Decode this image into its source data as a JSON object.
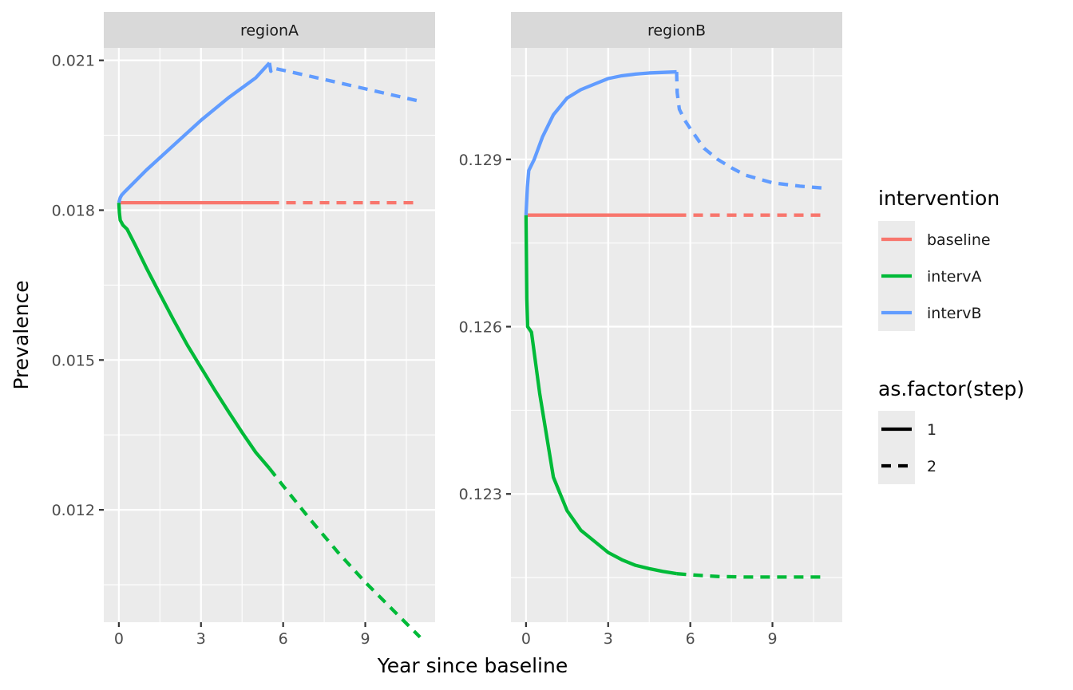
{
  "chart_data": {
    "type": "line",
    "xlabel": "Year since baseline",
    "ylabel": "Prevalence",
    "x_ticks": [
      0,
      3,
      6,
      9
    ],
    "panels": [
      {
        "label": "regionA",
        "xlim": [
          -0.55,
          11.55
        ],
        "ylim": [
          0.00975,
          0.02125
        ],
        "y_ticks": [
          0.012,
          0.015,
          0.018,
          0.021
        ],
        "y_tick_labels": [
          "0.012",
          "0.015",
          "0.018",
          "0.021"
        ],
        "series": [
          {
            "intervention": "baseline",
            "step1": [
              [
                0,
                0.01815
              ],
              [
                5.5,
                0.01815
              ]
            ],
            "step2": [
              [
                5.5,
                0.01815
              ],
              [
                11,
                0.01815
              ]
            ]
          },
          {
            "intervention": "intervA",
            "step1": [
              [
                0,
                0.01815
              ],
              [
                0.02,
                0.01795
              ],
              [
                0.05,
                0.0178
              ],
              [
                0.15,
                0.0177
              ],
              [
                0.3,
                0.01762
              ],
              [
                0.6,
                0.0173
              ],
              [
                1,
                0.01685
              ],
              [
                1.5,
                0.01632
              ],
              [
                2,
                0.0158
              ],
              [
                2.5,
                0.0153
              ],
              [
                3,
                0.01485
              ],
              [
                3.5,
                0.0144
              ],
              [
                4,
                0.01397
              ],
              [
                4.5,
                0.01355
              ],
              [
                5,
                0.01315
              ],
              [
                5.5,
                0.01283
              ]
            ],
            "step2": [
              [
                5.5,
                0.01283
              ],
              [
                6,
                0.01248
              ],
              [
                7,
                0.0118
              ],
              [
                8,
                0.01115
              ],
              [
                9,
                0.01055
              ],
              [
                10,
                0.01
              ],
              [
                11,
                0.00945
              ]
            ]
          },
          {
            "intervention": "intervB",
            "step1": [
              [
                0,
                0.01815
              ],
              [
                0.05,
                0.01825
              ],
              [
                0.1,
                0.0183
              ],
              [
                0.2,
                0.01836
              ],
              [
                1,
                0.0188
              ],
              [
                2,
                0.0193
              ],
              [
                3,
                0.0198
              ],
              [
                4,
                0.02025
              ],
              [
                5,
                0.02065
              ],
              [
                5.5,
                0.02095
              ]
            ],
            "step2": [
              [
                5.5,
                0.02095
              ],
              [
                5.55,
                0.02078
              ],
              [
                5.6,
                0.02085
              ],
              [
                7,
                0.02068
              ],
              [
                9,
                0.02043
              ],
              [
                11,
                0.02018
              ]
            ]
          }
        ]
      },
      {
        "label": "regionB",
        "xlim": [
          -0.55,
          11.55
        ],
        "ylim": [
          0.1207,
          0.131
        ],
        "y_ticks": [
          0.123,
          0.126,
          0.129
        ],
        "y_tick_labels": [
          "0.123",
          "0.126",
          "0.129"
        ],
        "series": [
          {
            "intervention": "baseline",
            "step1": [
              [
                0,
                0.128
              ],
              [
                5.5,
                0.128
              ]
            ],
            "step2": [
              [
                5.5,
                0.128
              ],
              [
                11,
                0.128
              ]
            ]
          },
          {
            "intervention": "intervA",
            "step1": [
              [
                0,
                0.128
              ],
              [
                0.03,
                0.1265
              ],
              [
                0.06,
                0.126
              ],
              [
                0.2,
                0.1259
              ],
              [
                0.5,
                0.1248
              ],
              [
                1,
                0.1233
              ],
              [
                1.5,
                0.1227
              ],
              [
                2,
                0.12235
              ],
              [
                2.5,
                0.12215
              ],
              [
                3,
                0.12195
              ],
              [
                3.5,
                0.12182
              ],
              [
                4,
                0.12172
              ],
              [
                4.5,
                0.12166
              ],
              [
                5,
                0.12161
              ],
              [
                5.5,
                0.12157
              ]
            ],
            "step2": [
              [
                5.5,
                0.12157
              ],
              [
                6,
                0.12155
              ],
              [
                7,
                0.12152
              ],
              [
                8,
                0.12151
              ],
              [
                9,
                0.12151
              ],
              [
                11,
                0.12151
              ]
            ]
          },
          {
            "intervention": "intervB",
            "step1": [
              [
                0,
                0.128
              ],
              [
                0.05,
                0.1285
              ],
              [
                0.1,
                0.1288
              ],
              [
                0.3,
                0.129
              ],
              [
                0.6,
                0.1294
              ],
              [
                1,
                0.1298
              ],
              [
                1.5,
                0.1301
              ],
              [
                2,
                0.13025
              ],
              [
                2.5,
                0.13035
              ],
              [
                3,
                0.13045
              ],
              [
                3.5,
                0.1305
              ],
              [
                4,
                0.13053
              ],
              [
                4.5,
                0.13055
              ],
              [
                5.5,
                0.13057
              ]
            ],
            "step2": [
              [
                5.5,
                0.13057
              ],
              [
                5.52,
                0.1302
              ],
              [
                5.6,
                0.1299
              ],
              [
                5.8,
                0.1297
              ],
              [
                6,
                0.12955
              ],
              [
                6.5,
                0.1292
              ],
              [
                7,
                0.129
              ],
              [
                7.5,
                0.12885
              ],
              [
                8,
                0.12872
              ],
              [
                9,
                0.12858
              ],
              [
                10,
                0.12852
              ],
              [
                11,
                0.12848
              ]
            ]
          }
        ]
      }
    ],
    "legends": [
      {
        "title": "intervention",
        "entries": [
          {
            "label": "baseline",
            "color": "#F8766D"
          },
          {
            "label": "intervA",
            "color": "#00BA38"
          },
          {
            "label": "intervB",
            "color": "#619CFF"
          }
        ]
      },
      {
        "title": "as.factor(step)",
        "entries": [
          {
            "label": "1",
            "linetype": "solid"
          },
          {
            "label": "2",
            "linetype": "dashed"
          }
        ]
      }
    ],
    "colors": {
      "baseline": "#F8766D",
      "intervA": "#00BA38",
      "intervB": "#619CFF",
      "panel_background": "#EBEBEB",
      "strip_background": "#D9D9D9",
      "grid": "#FFFFFF"
    },
    "legend_position": "right",
    "grid": true
  }
}
